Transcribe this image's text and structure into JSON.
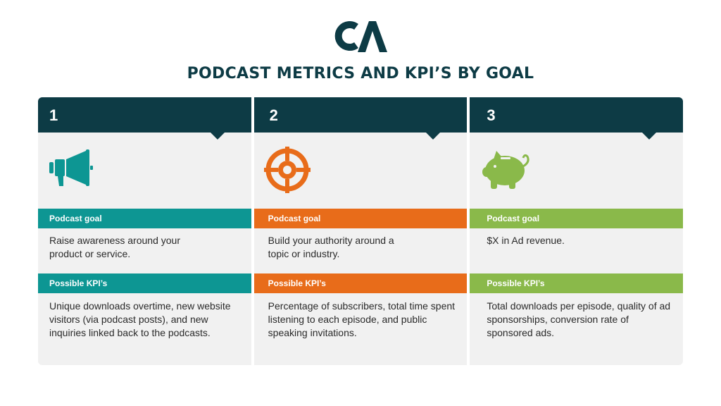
{
  "logo": {
    "text": "CA",
    "color": "#0d3b45"
  },
  "title": "PODCAST METRICS AND KPI’S BY GOAL",
  "cards": [
    {
      "number": "1",
      "icon": "megaphone-icon",
      "accent": "#0d9693",
      "goal_label": "Podcast goal",
      "goal_text": "Raise awareness around your product or service.",
      "kpi_label": "Possible KPI’s",
      "kpi_text": "Unique downloads overtime, new website visitors (via podcast posts), and new inquiries linked back to the podcasts."
    },
    {
      "number": "2",
      "icon": "target-icon",
      "accent": "#e86c1a",
      "goal_label": "Podcast goal",
      "goal_text": "Build your authority around a topic or industry.",
      "kpi_label": "Possible KPI’s",
      "kpi_text": "Percentage of subscribers, total time spent listening to each episode, and public speaking invitations."
    },
    {
      "number": "3",
      "icon": "piggy-bank-icon",
      "accent": "#8ab94a",
      "goal_label": "Podcast goal",
      "goal_text": "$X in Ad revenue.",
      "kpi_label": "Possible KPI’s",
      "kpi_text": "Total downloads per episode, quality of ad sponsorships, conversion rate of sponsored ads."
    }
  ]
}
